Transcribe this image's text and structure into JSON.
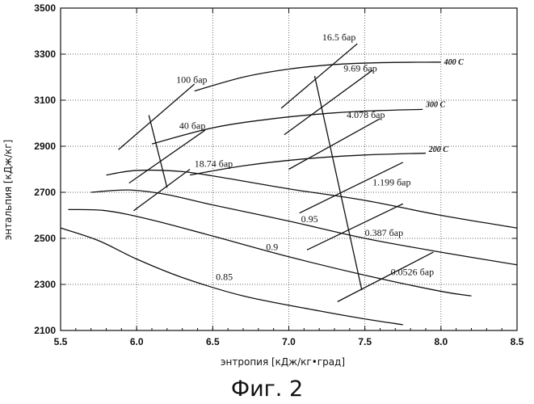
{
  "figure_caption": "Фиг. 2",
  "chart_data": {
    "type": "line",
    "xlabel": "энтропия  [кДж/кг•град]",
    "ylabel": "энтальпия  [кДж/кг]",
    "xlim": [
      5.5,
      8.5
    ],
    "ylim": [
      2100,
      3500
    ],
    "xticks": [
      "5.5",
      "6.0",
      "6.5",
      "7.0",
      "7.5",
      "8.0",
      "8.5"
    ],
    "yticks": [
      "2100",
      "2300",
      "2500",
      "2700",
      "2900",
      "3100",
      "3300",
      "3500"
    ],
    "grid": true,
    "series": [
      {
        "name": "400 C",
        "kind": "isotherm",
        "x": [
          6.38,
          6.7,
          7.0,
          7.3,
          7.6,
          7.9,
          8.0
        ],
        "y": [
          3140,
          3200,
          3235,
          3255,
          3263,
          3265,
          3265
        ]
      },
      {
        "name": "300 C",
        "kind": "isotherm",
        "x": [
          6.1,
          6.5,
          6.9,
          7.3,
          7.6,
          7.88
        ],
        "y": [
          2910,
          2980,
          3020,
          3045,
          3055,
          3060
        ]
      },
      {
        "name": "200 C",
        "kind": "isotherm",
        "x": [
          6.35,
          6.7,
          7.1,
          7.5,
          7.9
        ],
        "y": [
          2775,
          2815,
          2845,
          2862,
          2870
        ]
      },
      {
        "name": "",
        "kind": "saturation-ish",
        "x": [
          5.8,
          6.0,
          6.3,
          6.6,
          7.0,
          7.5,
          8.0,
          8.5
        ],
        "y": [
          2775,
          2795,
          2790,
          2760,
          2715,
          2665,
          2600,
          2545
        ]
      },
      {
        "name": "",
        "kind": "quality",
        "x": [
          5.7,
          5.95,
          6.2,
          6.5,
          7.0,
          7.5,
          8.0,
          8.5
        ],
        "y": [
          2700,
          2710,
          2690,
          2645,
          2575,
          2500,
          2440,
          2385
        ]
      },
      {
        "name": "0.9",
        "kind": "quality",
        "x": [
          5.55,
          5.8,
          6.1,
          6.5,
          7.0,
          7.5,
          8.0,
          8.2
        ],
        "y": [
          2625,
          2620,
          2580,
          2510,
          2420,
          2340,
          2270,
          2250
        ]
      },
      {
        "name": "0.85",
        "kind": "quality",
        "x": [
          5.5,
          5.75,
          6.0,
          6.3,
          6.7,
          7.2,
          7.5,
          7.75
        ],
        "y": [
          2545,
          2490,
          2410,
          2330,
          2250,
          2185,
          2150,
          2125
        ]
      }
    ],
    "pressure_lines": [
      {
        "label": "16.5 бар",
        "x": [
          6.95,
          7.45
        ],
        "y": [
          3065,
          3345
        ]
      },
      {
        "label": "100 бар",
        "x": [
          5.88,
          6.38
        ],
        "y": [
          2885,
          3170
        ]
      },
      {
        "label": "9.69 бар",
        "x": [
          6.97,
          7.55
        ],
        "y": [
          2950,
          3230
        ]
      },
      {
        "label": "40 бар",
        "x": [
          5.95,
          6.45
        ],
        "y": [
          2740,
          2970
        ]
      },
      {
        "label": "4.078 бар",
        "x": [
          7.0,
          7.6
        ],
        "y": [
          2800,
          3020
        ]
      },
      {
        "label": "18.74 бар",
        "x": [
          5.98,
          6.35
        ],
        "y": [
          2620,
          2800
        ]
      },
      {
        "label": "1.199 бар",
        "x": [
          7.07,
          7.75
        ],
        "y": [
          2610,
          2830
        ]
      },
      {
        "label": "0.387 бар",
        "x": [
          7.12,
          7.75
        ],
        "y": [
          2450,
          2650
        ]
      },
      {
        "label": "0.0526 бар",
        "x": [
          7.32,
          7.95
        ],
        "y": [
          2225,
          2440
        ]
      }
    ],
    "expansion_lines": [
      {
        "x": [
          6.08,
          6.2
        ],
        "y": [
          3035,
          2720
        ]
      },
      {
        "x": [
          7.17,
          7.48
        ],
        "y": [
          3205,
          2275
        ]
      }
    ],
    "annotations": [
      "400 C",
      "300 C",
      "200 C",
      "0.95",
      "0.9",
      "0.85",
      "16.5 бар",
      "100 бар",
      "9.69 бар",
      "40 бар",
      "4.078 бар",
      "18.74 бар",
      "1.199 бар",
      "0.387 бар",
      "0.0526 бар"
    ],
    "annotation_extra": {
      "quality_095": "0.95"
    }
  }
}
